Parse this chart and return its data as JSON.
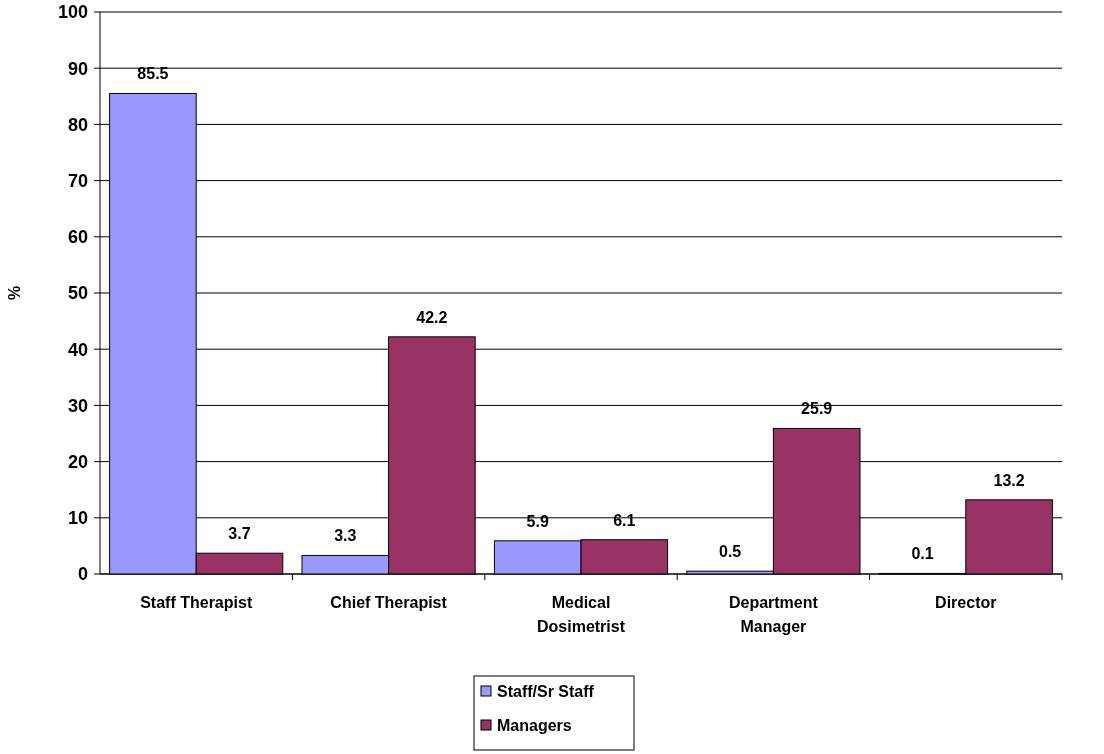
{
  "chart_data": {
    "type": "bar",
    "ylabel": "%",
    "categories": [
      "Staff Therapist",
      "Chief Therapist",
      "Medical Dosimetrist",
      "Department Manager",
      "Director"
    ],
    "series": [
      {
        "name": "Staff/Sr Staff",
        "color": "#9999ff",
        "values": [
          85.5,
          3.3,
          5.9,
          0.5,
          0.1
        ]
      },
      {
        "name": "Managers",
        "color": "#993366",
        "values": [
          3.7,
          42.2,
          6.1,
          25.9,
          13.2
        ]
      }
    ],
    "ylim": [
      0,
      100
    ],
    "yticks": [
      0,
      10,
      20,
      30,
      40,
      50,
      60,
      70,
      80,
      90,
      100
    ],
    "grid": "y",
    "legend": "bottom",
    "data_labels": true
  }
}
